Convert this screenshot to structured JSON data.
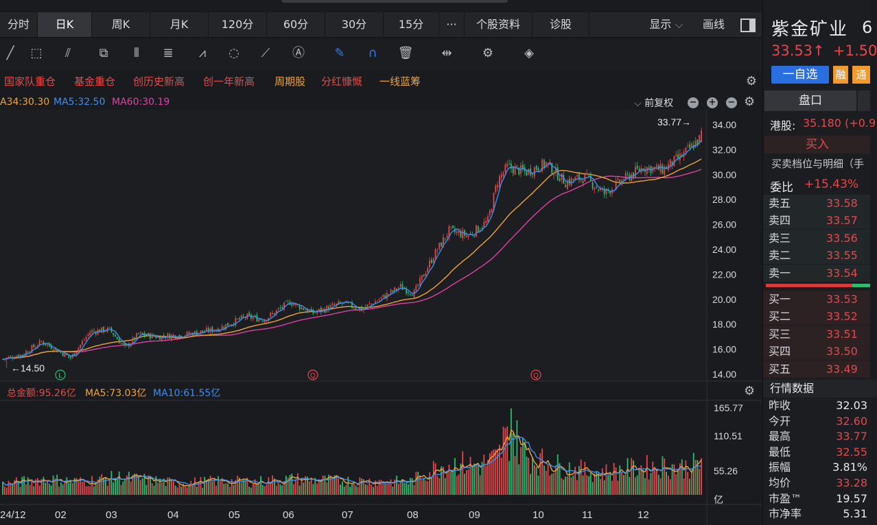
{
  "tabs": [
    "分时",
    "日K",
    "周K",
    "月K",
    "120分",
    "60分",
    "30分",
    "15分",
    "···",
    "个股资料",
    "诊股"
  ],
  "active_tab": "日K",
  "display_label": "显示",
  "draw_label": "画线",
  "tags": [
    "国家队重仓",
    "基金重仓",
    "创历史新高",
    "创一年新高",
    "周期股",
    "分红慷慨",
    "一线蓝筹"
  ],
  "ma_legend": {
    "ma_a": "A34:30.30",
    "ma5": "MA5:32.50",
    "ma60": "MA60:30.19"
  },
  "adjust_label": "前复权",
  "vol_legend": {
    "total": "总金额:95.26亿",
    "ma5": "MA5:73.03亿",
    "ma10": "MA10:61.55亿"
  },
  "colors": {
    "up": "#e8464b",
    "down": "#2dbd6e",
    "ma5": "#3d8ef0",
    "ma_a": "#f0a43a",
    "ma60": "#e040a8",
    "bg": "#1a1b1e"
  },
  "stock": {
    "name": "紫金矿业",
    "code_fragment": "6",
    "price": "33.53↑",
    "change": "+1.50",
    "watch_button": "一自选",
    "badge_rong": "融",
    "badge_tong": "通",
    "tab_pankou": "盘口",
    "hk_label": "港股:",
    "hk_value": "35.180 (+0.9",
    "buy_in": "买入",
    "depth_title": "买卖档位与明细（手",
    "weibi_label": "委比",
    "weibi_value": "+15.43%"
  },
  "asks": [
    {
      "label": "卖五",
      "price": "33.58"
    },
    {
      "label": "卖四",
      "price": "33.57"
    },
    {
      "label": "卖三",
      "price": "33.56"
    },
    {
      "label": "卖二",
      "price": "33.55"
    },
    {
      "label": "卖一",
      "price": "33.54"
    }
  ],
  "bids": [
    {
      "label": "买一",
      "price": "33.53"
    },
    {
      "label": "买二",
      "price": "33.52"
    },
    {
      "label": "买三",
      "price": "33.51"
    },
    {
      "label": "买四",
      "price": "33.50"
    },
    {
      "label": "买五",
      "price": "33.49"
    }
  ],
  "quote_title": "行情数据",
  "quote": [
    {
      "label": "昨收",
      "value": "32.03"
    },
    {
      "label": "今开",
      "value": "32.60"
    },
    {
      "label": "最高",
      "value": "33.77"
    },
    {
      "label": "最低",
      "value": "32.55"
    },
    {
      "label": "振幅",
      "value": "3.81%"
    },
    {
      "label": "均价",
      "value": "33.28"
    },
    {
      "label": "市盈™",
      "value": "19.57"
    },
    {
      "label": "市净率",
      "value": "5.31"
    }
  ],
  "chart_data": {
    "type": "candlestick",
    "price_axis": [
      "34.00",
      "32.00",
      "30.00",
      "28.00",
      "26.00",
      "24.00",
      "22.00",
      "20.00",
      "18.00",
      "16.00",
      "14.00"
    ],
    "ylim": [
      14,
      34
    ],
    "volume_axis": [
      "165.77",
      "110.51",
      "55.26",
      "亿"
    ],
    "volume_ylim": [
      0,
      170
    ],
    "months": [
      "24/12",
      "02",
      "03",
      "04",
      "05",
      "06",
      "07",
      "08",
      "09",
      "10",
      "11",
      "12"
    ],
    "max_label": "33.77→",
    "min_label": "←14.50",
    "markers": [
      "L",
      "Q",
      "Q"
    ],
    "price_anchors": [
      [
        0,
        15.2
      ],
      [
        10,
        15.6
      ],
      [
        20,
        16.6
      ],
      [
        25,
        16.2
      ],
      [
        35,
        15.3
      ],
      [
        45,
        17.4
      ],
      [
        55,
        17.6
      ],
      [
        63,
        16.1
      ],
      [
        70,
        17.2
      ],
      [
        80,
        17.0
      ],
      [
        95,
        17.2
      ],
      [
        110,
        17.6
      ],
      [
        125,
        18.6
      ],
      [
        135,
        18.4
      ],
      [
        148,
        19.8
      ],
      [
        160,
        18.9
      ],
      [
        175,
        19.7
      ],
      [
        185,
        19.2
      ],
      [
        195,
        20.1
      ],
      [
        205,
        21.0
      ],
      [
        212,
        20.5
      ],
      [
        222,
        23.5
      ],
      [
        230,
        25.5
      ],
      [
        240,
        25.1
      ],
      [
        250,
        26.3
      ],
      [
        255,
        29.5
      ],
      [
        260,
        30.6
      ],
      [
        270,
        30.2
      ],
      [
        280,
        30.9
      ],
      [
        290,
        29.4
      ],
      [
        300,
        29.8
      ],
      [
        310,
        28.5
      ],
      [
        320,
        29.6
      ],
      [
        330,
        30.6
      ],
      [
        340,
        30.4
      ],
      [
        350,
        31.5
      ],
      [
        360,
        33.0
      ]
    ],
    "volume_anchors": [
      [
        0,
        20
      ],
      [
        20,
        30
      ],
      [
        40,
        25
      ],
      [
        60,
        33
      ],
      [
        75,
        28
      ],
      [
        90,
        22
      ],
      [
        110,
        26
      ],
      [
        130,
        25
      ],
      [
        150,
        30
      ],
      [
        170,
        27
      ],
      [
        190,
        26
      ],
      [
        210,
        25
      ],
      [
        225,
        55
      ],
      [
        235,
        60
      ],
      [
        245,
        55
      ],
      [
        255,
        70
      ],
      [
        262,
        120
      ],
      [
        270,
        75
      ],
      [
        280,
        60
      ],
      [
        290,
        52
      ],
      [
        300,
        45
      ],
      [
        310,
        42
      ],
      [
        320,
        48
      ],
      [
        330,
        52
      ],
      [
        340,
        55
      ],
      [
        350,
        52
      ],
      [
        360,
        58
      ]
    ]
  }
}
